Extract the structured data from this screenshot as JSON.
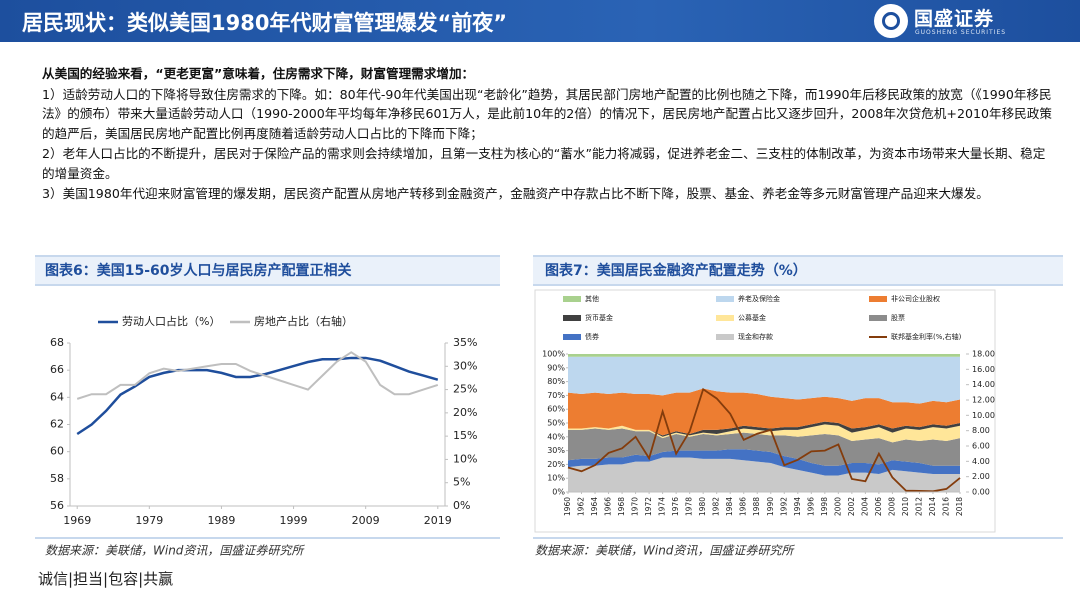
{
  "header": {
    "title": "居民现状：类似美国1980年代财富管理爆发“前夜”",
    "logo": "国盛证券",
    "logo_sub": "GUOSHENG SECURITIES"
  },
  "intro": {
    "lead": "从美国的经验来看，“更老更富”意味着，住房需求下降，财富管理需求增加：",
    "paragraphs": [
      "1）适龄劳动人口的下降将导致住房需求的下降。如：80年代-90年代美国出现“老龄化”趋势，其居民部门房地产配置的比例也随之下降，而1990年后移民政策的放宽（《1990年移民法》的颁布）带来大量适龄劳动人口（1990-2000年平均每年净移民601万人，是此前10年的2倍）的情况下，居民房地产配置占比又逐步回升，2008年次贷危机+2010年移民政策的趋严后，美国居民房地产配置比例再度随着适龄劳动人口占比的下降而下降；",
      "2）老年人口占比的不断提升，居民对于保险产品的需求则会持续增加，且第一支柱为核心的“蓄水”能力将减弱，促进养老金二、三支柱的体制改革，为资本市场带来大量长期、稳定的增量资金。",
      "3）美国1980年代迎来财富管理的爆发期，居民资产配置从房地产转移到金融资产，金融资产中存款占比不断下降，股票、基金、养老金等多元财富管理产品迎来大爆发。"
    ]
  },
  "chart_data": [
    {
      "type": "line",
      "title": "图表6：美国15-60岁人口与居民房产配置正相关",
      "source": "数据来源：美联储，Wind资讯，国盛证券研究所",
      "x": [
        1969,
        1971,
        1973,
        1975,
        1977,
        1979,
        1981,
        1983,
        1985,
        1987,
        1989,
        1991,
        1993,
        1995,
        1997,
        1999,
        2001,
        2003,
        2005,
        2007,
        2009,
        2011,
        2013,
        2015,
        2017,
        2019
      ],
      "xlim": [
        1968,
        2020
      ],
      "xticks": [
        1969,
        1979,
        1989,
        1999,
        2009,
        2019
      ],
      "ylim": [
        56,
        68
      ],
      "yticks": [
        56,
        58,
        60,
        62,
        64,
        66,
        68
      ],
      "y2lim": [
        0,
        35
      ],
      "y2ticks": [
        {
          "value": 0,
          "label": "0%"
        },
        {
          "value": 5,
          "label": "5%"
        },
        {
          "value": 10,
          "label": "10%"
        },
        {
          "value": 15,
          "label": "15%"
        },
        {
          "value": 20,
          "label": "20%"
        },
        {
          "value": 25,
          "label": "25%"
        },
        {
          "value": 30,
          "label": "30%"
        },
        {
          "value": 35,
          "label": "35%"
        }
      ],
      "series": [
        {
          "name": "劳动人口占比（%）",
          "color": "#1f4e9c",
          "values": [
            61.3,
            62.0,
            63.0,
            64.2,
            64.8,
            65.5,
            65.8,
            66.0,
            66.0,
            66.0,
            65.8,
            65.5,
            65.5,
            65.7,
            66.0,
            66.3,
            66.6,
            66.8,
            66.8,
            66.9,
            66.9,
            66.7,
            66.3,
            65.9,
            65.6,
            65.3
          ]
        },
        {
          "name": "房地产占比（右轴）",
          "color": "#bfbfbf",
          "axis": "y2",
          "values": [
            23.0,
            24.0,
            24.0,
            26.0,
            26.0,
            28.5,
            29.5,
            29.0,
            29.5,
            30.0,
            30.5,
            30.5,
            29.0,
            28.0,
            27.0,
            26.0,
            25.0,
            28.0,
            31.0,
            33.0,
            31.0,
            26.0,
            24.0,
            24.0,
            25.0,
            26.0
          ]
        }
      ]
    },
    {
      "type": "area",
      "title": "图表7：美国居民金融资产配置走势（%）",
      "source": "数据来源：美联储，Wind资讯，国盛证券研究所",
      "x": [
        1960,
        1962,
        1964,
        1966,
        1968,
        1970,
        1972,
        1974,
        1976,
        1978,
        1980,
        1982,
        1984,
        1986,
        1988,
        1990,
        1992,
        1994,
        1996,
        1998,
        2000,
        2002,
        2004,
        2006,
        2008,
        2010,
        2012,
        2014,
        2016,
        2018
      ],
      "xlim": [
        1960,
        2018
      ],
      "xticks": [
        1960,
        1962,
        1964,
        1966,
        1968,
        1970,
        1972,
        1974,
        1976,
        1978,
        1980,
        1982,
        1984,
        1986,
        1988,
        1990,
        1992,
        1994,
        1996,
        1998,
        2000,
        2002,
        2004,
        2006,
        2008,
        2010,
        2012,
        2014,
        2016,
        2018
      ],
      "ylim": [
        0,
        100
      ],
      "yticks": [
        {
          "value": 0,
          "label": "0%"
        },
        {
          "value": 10,
          "label": "10%"
        },
        {
          "value": 20,
          "label": "20%"
        },
        {
          "value": 30,
          "label": "30%"
        },
        {
          "value": 40,
          "label": "40%"
        },
        {
          "value": 50,
          "label": "50%"
        },
        {
          "value": 60,
          "label": "60%"
        },
        {
          "value": 70,
          "label": "70%"
        },
        {
          "value": 80,
          "label": "80%"
        },
        {
          "value": 90,
          "label": "90%"
        },
        {
          "value": 100,
          "label": "100%"
        }
      ],
      "y2lim": [
        0,
        18
      ],
      "y2ticks": [
        {
          "value": 0,
          "label": "0.00"
        },
        {
          "value": 2,
          "label": "2.00"
        },
        {
          "value": 4,
          "label": "4.00"
        },
        {
          "value": 6,
          "label": "6.00"
        },
        {
          "value": 8,
          "label": "8.00"
        },
        {
          "value": 10,
          "label": "10.00"
        },
        {
          "value": 12,
          "label": "12.00"
        },
        {
          "value": 14,
          "label": "14.00"
        },
        {
          "value": 16,
          "label": "16.00"
        },
        {
          "value": 18,
          "label": "18.00"
        }
      ],
      "series": [
        {
          "name": "其他",
          "color": "#a9d18e",
          "values": [
            2,
            2,
            2,
            2,
            2,
            2,
            2,
            2,
            2,
            2,
            2,
            2,
            2,
            2,
            2,
            2,
            2,
            2,
            2,
            2,
            2,
            2,
            2,
            2,
            2,
            2,
            2,
            2,
            2,
            2
          ]
        },
        {
          "name": "养老及保险金",
          "color": "#bdd7ee",
          "values": [
            26,
            27,
            26,
            27,
            26,
            27,
            27,
            28,
            26,
            26,
            23,
            25,
            26,
            26,
            27,
            29,
            30,
            31,
            30,
            29,
            30,
            32,
            30,
            30,
            33,
            33,
            34,
            32,
            33,
            31
          ]
        },
        {
          "name": "非公司企业股权",
          "color": "#ed7d31",
          "values": [
            26,
            25,
            25,
            25,
            24,
            26,
            26,
            29,
            28,
            30,
            30,
            28,
            26,
            24,
            24,
            23,
            21,
            20,
            19,
            18,
            18,
            20,
            21,
            19,
            19,
            17,
            17,
            17,
            17,
            17
          ]
        },
        {
          "name": "货币基金",
          "color": "#404040",
          "values": [
            0,
            0,
            0,
            0,
            0,
            0,
            0,
            1,
            1,
            1,
            2,
            3,
            2,
            2,
            2,
            2,
            2,
            2,
            2,
            2,
            2,
            3,
            2,
            2,
            3,
            2,
            2,
            2,
            2,
            2
          ]
        },
        {
          "name": "公募基金",
          "color": "#ffe699",
          "values": [
            1,
            1,
            1,
            1,
            2,
            1,
            1,
            1,
            1,
            1,
            1,
            1,
            2,
            3,
            3,
            3,
            4,
            5,
            6,
            7,
            7,
            6,
            7,
            8,
            7,
            8,
            8,
            9,
            9,
            9
          ]
        },
        {
          "name": "股票",
          "color": "#8c8c8c",
          "values": [
            22,
            21,
            22,
            20,
            21,
            17,
            18,
            10,
            12,
            10,
            12,
            11,
            11,
            12,
            12,
            12,
            15,
            16,
            20,
            23,
            22,
            16,
            17,
            19,
            13,
            16,
            16,
            19,
            18,
            20
          ]
        },
        {
          "name": "债券",
          "color": "#4472c4",
          "values": [
            5,
            5,
            5,
            5,
            5,
            5,
            4,
            4,
            5,
            5,
            6,
            6,
            7,
            8,
            8,
            8,
            8,
            8,
            7,
            7,
            7,
            7,
            7,
            7,
            7,
            7,
            7,
            6,
            6,
            6
          ]
        },
        {
          "name": "现金和存款",
          "color": "#c9c9c9",
          "values": [
            18,
            19,
            19,
            20,
            20,
            22,
            22,
            25,
            25,
            25,
            24,
            24,
            24,
            23,
            22,
            21,
            18,
            16,
            14,
            12,
            12,
            14,
            14,
            13,
            16,
            15,
            14,
            13,
            13,
            13
          ]
        },
        {
          "name": "联邦基金利率(%,右轴)",
          "color": "#843c0c",
          "axis": "y2",
          "values": [
            3.2,
            2.7,
            3.5,
            5.1,
            5.7,
            7.2,
            4.4,
            10.5,
            5.0,
            7.9,
            13.4,
            12.2,
            10.2,
            6.8,
            7.6,
            8.1,
            3.5,
            4.2,
            5.3,
            5.4,
            6.2,
            1.7,
            1.4,
            5.0,
            1.9,
            0.18,
            0.14,
            0.09,
            0.4,
            1.83
          ]
        }
      ]
    }
  ],
  "footer": "诚信|担当|包容|共赢"
}
